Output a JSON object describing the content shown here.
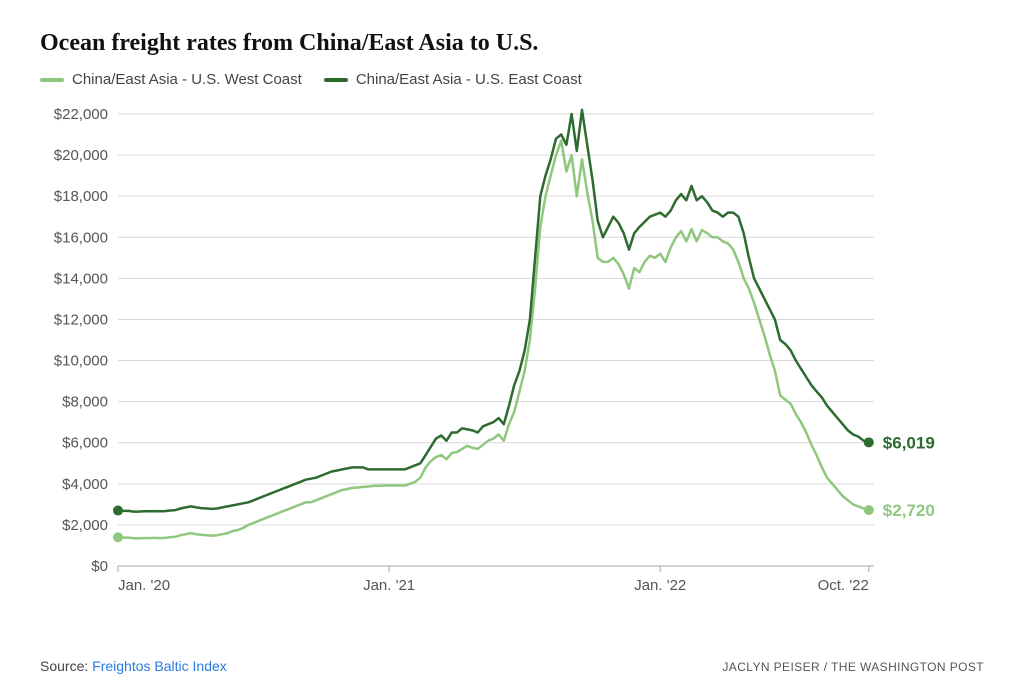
{
  "title": "Ocean freight rates from China/East Asia to U.S.",
  "legend": {
    "series_a": "China/East Asia - U.S. West Coast",
    "series_b": "China/East Asia - U.S. East Coast"
  },
  "footer": {
    "source_prefix": "Source: ",
    "source_link": "Freightos Baltic Index",
    "credit": "JACLYN PEISER / THE WASHINGTON POST"
  },
  "chart": {
    "type": "line",
    "background_color": "#ffffff",
    "grid_color": "#d9d9d9",
    "baseline_color": "#aaaaaa",
    "text_color": "#555555",
    "y": {
      "min": 0,
      "max": 22000,
      "tick_step": 2000,
      "tick_labels": [
        "$0",
        "$2,000",
        "$4,000",
        "$6,000",
        "$8,000",
        "$10,000",
        "$12,000",
        "$14,000",
        "$16,000",
        "$18,000",
        "$20,000",
        "$22,000"
      ],
      "label_fontsize": 15
    },
    "x": {
      "min": 0,
      "max": 145,
      "ticks": [
        0,
        52,
        104,
        144
      ],
      "tick_labels": [
        "Jan. '20",
        "Jan. '21",
        "Jan. '22",
        "Oct. '22"
      ],
      "label_fontsize": 15
    },
    "series": [
      {
        "id": "west",
        "name": "China/East Asia - U.S. West Coast",
        "color": "#8fc77e",
        "line_width": 2.5,
        "end_label": "$2,720",
        "end_label_fontsize": 17,
        "end_dot_radius": 5,
        "values": [
          1400,
          1380,
          1380,
          1350,
          1350,
          1360,
          1360,
          1370,
          1360,
          1370,
          1400,
          1420,
          1500,
          1550,
          1600,
          1550,
          1520,
          1500,
          1480,
          1500,
          1550,
          1600,
          1700,
          1750,
          1850,
          2000,
          2100,
          2200,
          2300,
          2400,
          2500,
          2600,
          2700,
          2800,
          2900,
          3000,
          3100,
          3100,
          3200,
          3300,
          3400,
          3500,
          3600,
          3700,
          3750,
          3800,
          3820,
          3850,
          3870,
          3900,
          3900,
          3920,
          3920,
          3920,
          3920,
          3920,
          4000,
          4100,
          4300,
          4800,
          5100,
          5300,
          5400,
          5200,
          5500,
          5550,
          5700,
          5850,
          5750,
          5700,
          5900,
          6100,
          6200,
          6400,
          6100,
          6900,
          7500,
          8500,
          9500,
          11000,
          13500,
          16500,
          18000,
          19000,
          20000,
          20700,
          19200,
          20000,
          18000,
          19800,
          18200,
          16800,
          15000,
          14800,
          14800,
          15000,
          14700,
          14200,
          13500,
          14500,
          14300,
          14800,
          15100,
          15000,
          15200,
          14800,
          15500,
          16000,
          16300,
          15800,
          16400,
          15800,
          16350,
          16200,
          16000,
          16000,
          15800,
          15700,
          15400,
          14800,
          14000,
          13500,
          12800,
          12000,
          11200,
          10300,
          9500,
          8300,
          8100,
          7900,
          7400,
          7000,
          6500,
          5900,
          5400,
          4800,
          4300,
          4000,
          3700,
          3400,
          3200,
          3000,
          2900,
          2800,
          2720
        ]
      },
      {
        "id": "east",
        "name": "China/East Asia - U.S. East Coast",
        "color": "#2e6b2e",
        "line_width": 2.5,
        "end_label": "$6,019",
        "end_label_fontsize": 17,
        "end_dot_radius": 5,
        "values": [
          2700,
          2680,
          2680,
          2650,
          2650,
          2660,
          2660,
          2670,
          2660,
          2670,
          2700,
          2720,
          2800,
          2850,
          2900,
          2850,
          2820,
          2800,
          2780,
          2800,
          2850,
          2900,
          2950,
          3000,
          3050,
          3100,
          3200,
          3300,
          3400,
          3500,
          3600,
          3700,
          3800,
          3900,
          4000,
          4100,
          4200,
          4250,
          4300,
          4400,
          4500,
          4600,
          4650,
          4700,
          4750,
          4800,
          4800,
          4800,
          4700,
          4700,
          4700,
          4700,
          4700,
          4700,
          4700,
          4700,
          4800,
          4900,
          5000,
          5400,
          5800,
          6200,
          6350,
          6100,
          6500,
          6500,
          6700,
          6650,
          6600,
          6500,
          6800,
          6900,
          7000,
          7200,
          6900,
          7800,
          8800,
          9500,
          10500,
          12000,
          15000,
          18000,
          19000,
          19800,
          20800,
          21000,
          20500,
          22000,
          20200,
          22200,
          20500,
          18800,
          16800,
          16000,
          16500,
          17000,
          16700,
          16200,
          15400,
          16200,
          16500,
          16750,
          17000,
          17100,
          17200,
          17000,
          17300,
          17800,
          18100,
          17800,
          18500,
          17800,
          18000,
          17700,
          17300,
          17200,
          17000,
          17200,
          17200,
          17000,
          16200,
          15000,
          14000,
          13500,
          13000,
          12500,
          12000,
          11000,
          10800,
          10500,
          10000,
          9600,
          9200,
          8800,
          8500,
          8200,
          7800,
          7500,
          7200,
          6900,
          6600,
          6400,
          6300,
          6100,
          6019
        ]
      }
    ]
  }
}
